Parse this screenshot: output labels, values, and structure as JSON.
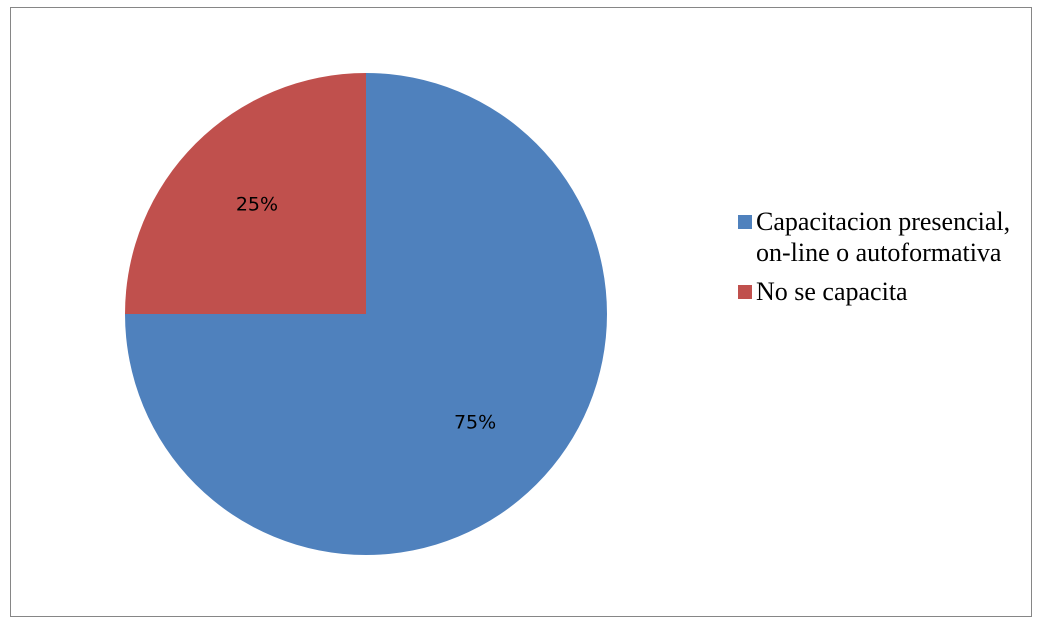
{
  "chart_data": {
    "type": "pie",
    "title": "",
    "categories": [
      "Capacitacion presencial, on-line o autoformativa",
      "No se capacita"
    ],
    "values": [
      75,
      25
    ],
    "value_labels": [
      "75%",
      "25%"
    ],
    "colors": [
      "#4F81BD",
      "#C0504D"
    ],
    "legend_position": "right",
    "start_angle": "12 o'clock",
    "direction": "clockwise"
  }
}
